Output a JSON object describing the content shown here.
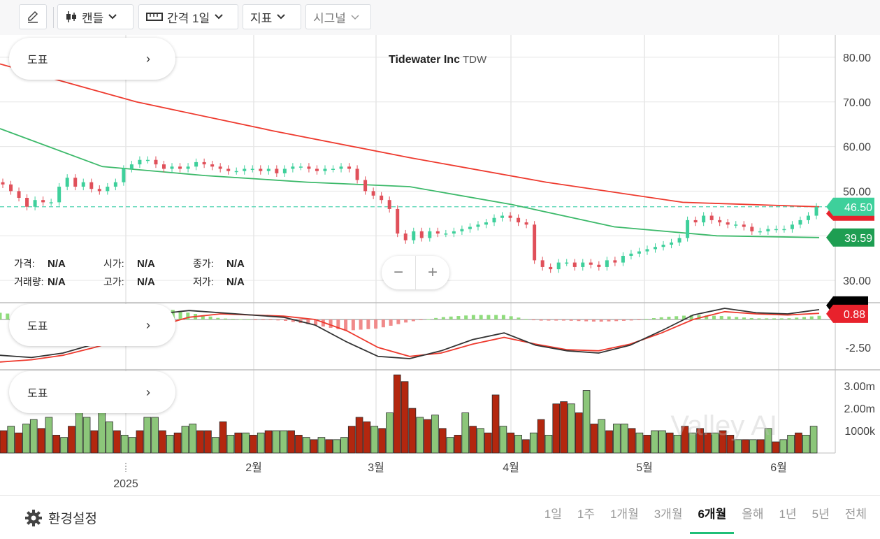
{
  "toolbar": {
    "draw_icon": "pencil-icon",
    "candle_label": "캔들",
    "interval_label": "간격 1일",
    "indicator_label": "지표",
    "signal_label": "시그널"
  },
  "chart_title": {
    "name": "Tidewater Inc",
    "ticker": "TDW"
  },
  "pills": [
    "도표",
    "도표",
    "도표"
  ],
  "info": {
    "row1": [
      {
        "k": "가격:",
        "v": "N/A"
      },
      {
        "k": "시가:",
        "v": "N/A"
      },
      {
        "k": "종가:",
        "v": "N/A"
      }
    ],
    "row2": [
      {
        "k": "거래량:",
        "v": "N/A"
      },
      {
        "k": "고가:",
        "v": "N/A"
      },
      {
        "k": "저가:",
        "v": "N/A"
      }
    ]
  },
  "zoom": {
    "minus": "−",
    "plus": "+"
  },
  "watermark": "Valley AI",
  "bottom": {
    "settings_label": "환경설정",
    "ranges": [
      "1일",
      "1주",
      "1개월",
      "3개월",
      "6개월",
      "올해",
      "1년",
      "5년",
      "전체"
    ],
    "active_range": "6개월"
  },
  "colors": {
    "up": "#3ed09b",
    "down": "#e0505a",
    "ma_long": "#ee3a2e",
    "ma_short": "#3cb96a",
    "vol_up": "#8cc67a",
    "vol_down": "#b3270f",
    "macd": "#333333",
    "signal": "#ee3a2e"
  },
  "chart_data": [
    {
      "type": "candlestick",
      "title": "Tidewater Inc TDW",
      "x_ticks": [
        "2025",
        "2월",
        "3월",
        "4월",
        "5월",
        "6월"
      ],
      "y_ticks": [
        "80.00",
        "70.00",
        "60.00",
        "50.00",
        "30.00"
      ],
      "ylim": [
        25,
        85
      ],
      "price_badges": [
        {
          "value": "46.50",
          "color": "#3ed09b"
        },
        {
          "value": "39.59",
          "color": "#1e9e52"
        }
      ],
      "last_price_line": 46.5,
      "ma_long": {
        "values": [
          78.5,
          70,
          63.5,
          57.5,
          52,
          47.5,
          46.5
        ]
      },
      "ma_short": {
        "values": [
          64,
          55.5,
          53.5,
          52,
          51,
          47,
          42,
          40,
          39.6
        ]
      },
      "candles_close": [
        51.5,
        50,
        48.5,
        46.5,
        48,
        47.5,
        47.5,
        51,
        53,
        51,
        52,
        50.5,
        50,
        51,
        52,
        55,
        56,
        57,
        57,
        56,
        55,
        55.5,
        55,
        55.5,
        56.5,
        56,
        55.5,
        55,
        54.5,
        54.5,
        55,
        55,
        54.5,
        55,
        54,
        55,
        55.5,
        55.5,
        55,
        54.5,
        55,
        55,
        55.5,
        55,
        52.5,
        50,
        49,
        48,
        46,
        40.5,
        39,
        41,
        39.5,
        41,
        40.5,
        40.5,
        41,
        41.5,
        42,
        42.5,
        43,
        44,
        44.5,
        44,
        43,
        42.5,
        34.5,
        33,
        32.5,
        34,
        34,
        33,
        34,
        33.5,
        33,
        34.5,
        34,
        35.5,
        36,
        36.5,
        37,
        37.5,
        38,
        38.5,
        39.5,
        43.5,
        43,
        44.5,
        43.5,
        43,
        42.5,
        42.5,
        42,
        41,
        41,
        41.5,
        41.5,
        41.5,
        42.5,
        43.5,
        44.5,
        46.5
      ],
      "candles_open": [
        52,
        51.5,
        50,
        48.5,
        46.5,
        48,
        47.5,
        47.5,
        51,
        53,
        51,
        52,
        50.5,
        50,
        51,
        52,
        55,
        56,
        57,
        57,
        56,
        55,
        55.5,
        55,
        55.5,
        56.5,
        56,
        55.5,
        55,
        54.5,
        54.5,
        55,
        55,
        54.5,
        55,
        54,
        55,
        55.5,
        55.5,
        55,
        54.5,
        55,
        55,
        55.5,
        55,
        52.5,
        50,
        49,
        48,
        46,
        40.5,
        39,
        41,
        39.5,
        41,
        40.5,
        40.5,
        41,
        41.5,
        42,
        42.5,
        43,
        44,
        44.5,
        44,
        43,
        42.5,
        34.5,
        33,
        32.5,
        34,
        34,
        33,
        34,
        33.5,
        33,
        34.5,
        34,
        35.5,
        36,
        36.5,
        37,
        37.5,
        38,
        38.5,
        39.5,
        43.5,
        43,
        44.5,
        43.5,
        43,
        42.5,
        42.5,
        42,
        41,
        41,
        41.5,
        41.5,
        41.5,
        42.5,
        43.5,
        44.5
      ]
    },
    {
      "type": "line",
      "name": "MACD",
      "y_ticks": [
        "-2.50"
      ],
      "badges": [
        {
          "value": "0.88",
          "color": "#e8222c"
        }
      ],
      "macd": [
        -3.2,
        -3.4,
        -3.0,
        -2.2,
        -1.0,
        0.5,
        0.8,
        0.6,
        0.4,
        0.2,
        -0.5,
        -2.0,
        -3.3,
        -3.5,
        -2.8,
        -1.8,
        -1.2,
        -2.3,
        -2.8,
        -3.0,
        -2.3,
        -1.0,
        0.4,
        1.0,
        0.6,
        0.5,
        0.88
      ],
      "signal": [
        -3.8,
        -3.6,
        -3.2,
        -2.5,
        -1.7,
        -0.6,
        0.2,
        0.5,
        0.4,
        0.3,
        0.0,
        -1.0,
        -2.5,
        -3.3,
        -3.0,
        -2.2,
        -1.6,
        -2.2,
        -2.7,
        -2.8,
        -2.2,
        -1.2,
        0.0,
        0.7,
        0.5,
        0.4,
        0.55
      ],
      "histogram": [
        0.6,
        0.3,
        0.2,
        0.3,
        0.7,
        1.1,
        0.6,
        0.1,
        0.0,
        -0.1,
        -0.5,
        -1.0,
        -0.8,
        -0.2,
        0.2,
        0.4,
        0.4,
        -0.1,
        -0.1,
        -0.2,
        -0.1,
        0.2,
        0.4,
        0.3,
        0.1,
        0.1,
        0.33
      ]
    },
    {
      "type": "bar",
      "name": "Volume",
      "y_ticks": [
        "3.00m",
        "2.00m",
        "1000k"
      ],
      "ylim": [
        0,
        3.6
      ],
      "values_m": [
        1.0,
        1.2,
        0.9,
        1.3,
        1.5,
        1.1,
        1.6,
        0.8,
        0.7,
        1.2,
        2.2,
        1.6,
        1.0,
        2.3,
        1.4,
        1.0,
        0.8,
        0.7,
        1.0,
        1.6,
        1.6,
        1.0,
        0.8,
        0.9,
        1.2,
        1.3,
        1.0,
        1.0,
        0.7,
        1.4,
        0.8,
        0.9,
        0.9,
        0.8,
        0.9,
        1.0,
        1.0,
        1.0,
        1.0,
        0.8,
        0.7,
        0.6,
        0.7,
        0.6,
        0.6,
        0.7,
        1.2,
        1.6,
        1.4,
        1.2,
        1.1,
        1.8,
        3.5,
        3.2,
        2.0,
        1.6,
        1.5,
        1.7,
        1.1,
        0.7,
        0.8,
        1.8,
        1.2,
        1.1,
        0.9,
        2.6,
        1.2,
        0.9,
        0.8,
        0.6,
        0.9,
        1.5,
        0.8,
        2.2,
        2.3,
        2.2,
        1.8,
        2.8,
        1.3,
        1.5,
        1.0,
        1.3,
        1.3,
        1.1,
        0.9,
        0.8,
        1.0,
        1.0,
        0.9,
        0.8,
        1.2,
        0.9,
        1.1,
        0.9,
        0.9,
        1.0,
        0.8,
        0.6,
        0.6,
        0.6,
        0.6,
        1.1,
        0.5,
        0.6,
        0.8,
        0.9,
        0.8,
        1.2
      ],
      "up": [
        false,
        true,
        false,
        true,
        true,
        false,
        true,
        false,
        true,
        false,
        true,
        true,
        false,
        true,
        true,
        false,
        true,
        true,
        false,
        true,
        true,
        false,
        true,
        false,
        true,
        true,
        false,
        false,
        true,
        false,
        true,
        false,
        true,
        false,
        true,
        false,
        true,
        true,
        false,
        false,
        true,
        false,
        true,
        false,
        true,
        true,
        false,
        false,
        false,
        true,
        false,
        true,
        false,
        false,
        false,
        true,
        false,
        true,
        false,
        true,
        false,
        true,
        false,
        true,
        false,
        false,
        true,
        false,
        true,
        false,
        true,
        false,
        true,
        false,
        false,
        true,
        false,
        true,
        false,
        true,
        false,
        true,
        true,
        false,
        true,
        false,
        true,
        true,
        false,
        true,
        false,
        true,
        false,
        false,
        true,
        false,
        false,
        true,
        false,
        true,
        false,
        true,
        false,
        true,
        true,
        false,
        true,
        true
      ]
    }
  ]
}
